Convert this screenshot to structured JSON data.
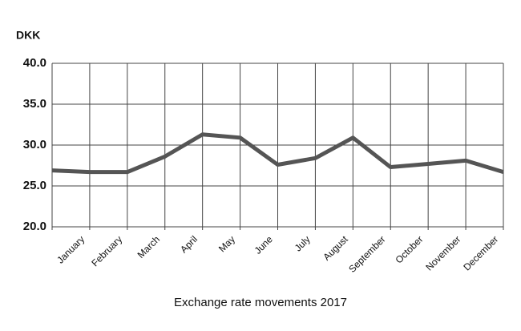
{
  "chart_data": {
    "type": "line",
    "title": "Exchange rate movements 2017",
    "y_label": "DKK",
    "categories": [
      null,
      "January",
      "February",
      "March",
      "April",
      "May",
      "June",
      "July",
      "August",
      "September",
      "October",
      "November",
      "December"
    ],
    "series": [
      {
        "color": "#555555",
        "values": [
          26.9,
          26.7,
          26.7,
          28.6,
          31.3,
          30.9,
          27.6,
          28.4,
          30.9,
          27.3,
          27.7,
          28.1,
          26.7
        ]
      }
    ],
    "ylim": [
      20,
      40
    ],
    "yticks": [
      {
        "value": 20,
        "label": "20.0"
      },
      {
        "value": 25,
        "label": "25.0"
      },
      {
        "value": 30,
        "label": "30.0"
      },
      {
        "value": 35,
        "label": "35.0"
      },
      {
        "value": 40,
        "label": "40.0"
      }
    ],
    "grid": true
  }
}
